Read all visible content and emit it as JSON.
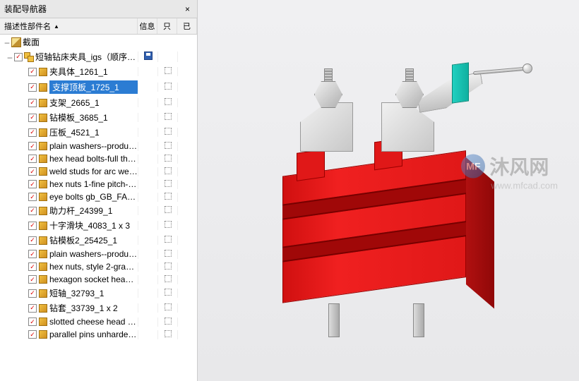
{
  "panel": {
    "title": "装配导航器",
    "columns": {
      "name": "描述性部件名",
      "info": "信息",
      "col_r": "只",
      "col_e": "已"
    }
  },
  "tree": {
    "root": {
      "label": "截面"
    },
    "assembly": {
      "label": "短轴钻床夹具_igs（顺序：时..."
    },
    "items": [
      {
        "label": "夹具体_1261_1"
      },
      {
        "label": "支撑顶板_1725_1"
      },
      {
        "label": "支架_2665_1"
      },
      {
        "label": "钻模板_3685_1"
      },
      {
        "label": "压板_4521_1"
      },
      {
        "label": "plain washers--product ..."
      },
      {
        "label": "hex head bolts-full threa..."
      },
      {
        "label": "weld studs for arc weldi..."
      },
      {
        "label": "hex nuts 1-fine pitch-gra..."
      },
      {
        "label": "eye bolts gb_GB_FASTE..."
      },
      {
        "label": "助力杆_24399_1"
      },
      {
        "label": "十字滑块_4083_1 x 3"
      },
      {
        "label": "钻模板2_25425_1"
      },
      {
        "label": "plain washers--product ..."
      },
      {
        "label": "hex nuts, style 2-grades ..."
      },
      {
        "label": "hexagon socket head sh..."
      },
      {
        "label": "短轴_32793_1"
      },
      {
        "label": "钻套_33739_1 x 2"
      },
      {
        "label": "slotted cheese head scr..."
      },
      {
        "label": "parallel pins unhardenin..."
      }
    ],
    "selected_index": 1
  },
  "watermark": {
    "logo": "MF",
    "main": "沐风网",
    "sub": "www.mfcad.com"
  },
  "viewport": {
    "fixture_color": "#e01818",
    "fixture_dark": "#a00808",
    "bracket_color": "#e0e0e0",
    "accent_color": "#20d0c0",
    "background": "#f0f0f2"
  }
}
